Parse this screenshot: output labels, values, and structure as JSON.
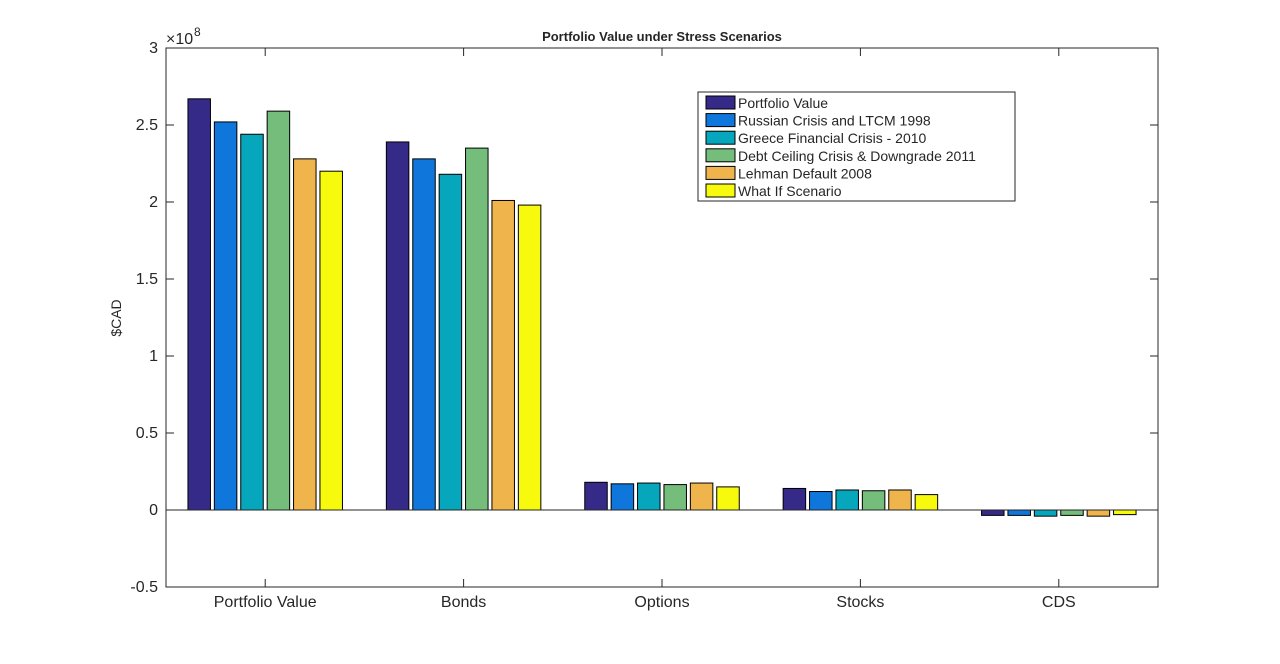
{
  "chart_data": {
    "type": "bar",
    "title": "Portfolio Value under Stress Scenarios",
    "xlabel": "",
    "ylabel": "$CAD",
    "exponent_base": "×10",
    "exponent_power": "8",
    "ylim": [
      -0.5,
      3
    ],
    "yticks": [
      -0.5,
      0,
      0.5,
      1,
      1.5,
      2,
      2.5,
      3
    ],
    "ytick_labels": [
      "-0.5",
      "0",
      "0.5",
      "1",
      "1.5",
      "2",
      "2.5",
      "3"
    ],
    "categories": [
      "Portfolio Value",
      "Bonds",
      "Options",
      "Stocks",
      "CDS"
    ],
    "series": [
      {
        "name": "Portfolio Value",
        "color": "#352A87",
        "values": [
          2.67,
          2.39,
          0.18,
          0.14,
          -0.035
        ]
      },
      {
        "name": "Russian Crisis and LTCM 1998",
        "color": "#0F77DB",
        "values": [
          2.52,
          2.28,
          0.17,
          0.12,
          -0.035
        ]
      },
      {
        "name": "Greece Financial Crisis - 2010",
        "color": "#06A6BD",
        "values": [
          2.44,
          2.18,
          0.175,
          0.13,
          -0.04
        ]
      },
      {
        "name": "Debt Ceiling Crisis & Downgrade 2011",
        "color": "#75BD7B",
        "values": [
          2.59,
          2.35,
          0.165,
          0.125,
          -0.035
        ]
      },
      {
        "name": "Lehman Default 2008",
        "color": "#EFB54C",
        "values": [
          2.28,
          2.01,
          0.175,
          0.13,
          -0.04
        ]
      },
      {
        "name": "What If Scenario",
        "color": "#F8FA0D",
        "values": [
          2.2,
          1.98,
          0.15,
          0.1,
          -0.03
        ]
      }
    ],
    "grid": false,
    "legend_position": "top-right"
  }
}
